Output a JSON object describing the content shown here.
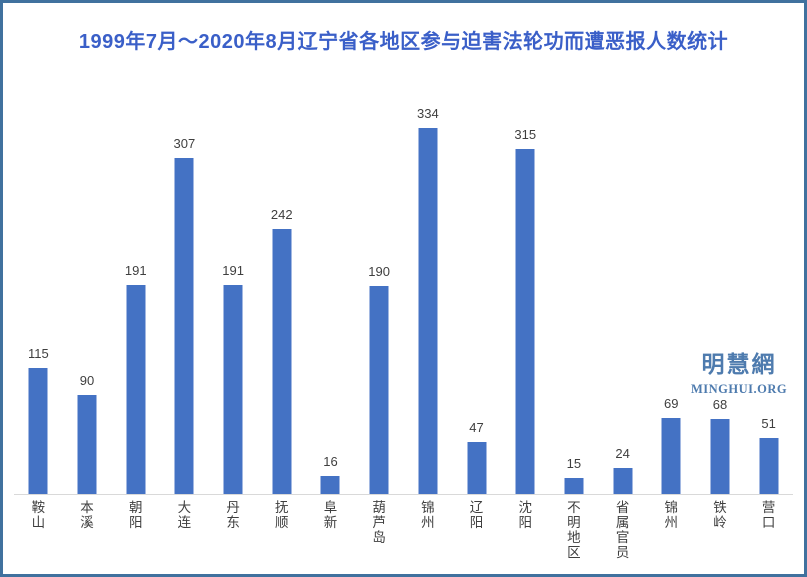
{
  "watermark": {
    "line1": "明慧網",
    "line2": "MINGHUI.ORG"
  },
  "colors": {
    "page_border": "#40719E",
    "title_text": "#3A5FC8",
    "bar_fill": "#4472C4",
    "value_label": "#3f3f3f",
    "category_label": "#3f3f3f",
    "axis_line": "#d9d9d9",
    "watermark_text": "#4E7BAE",
    "background": "#ffffff"
  },
  "chart_data": {
    "type": "bar",
    "title": "1999年7月～2020年8月辽宁省各地区参与迫害法轮功而遭恶报人数统计",
    "categories": [
      "鞍山",
      "本溪",
      "朝阳",
      "大连",
      "丹东",
      "抚顺",
      "阜新",
      "葫芦岛",
      "锦州",
      "辽阳",
      "沈阳",
      "不明地区",
      "省属官员",
      "锦州",
      "铁岭",
      "营口"
    ],
    "values": [
      115,
      90,
      191,
      307,
      191,
      242,
      16,
      190,
      334,
      47,
      315,
      15,
      24,
      69,
      68,
      51
    ],
    "xlabel": "",
    "ylabel": "",
    "ylim": [
      0,
      350
    ],
    "grid": false,
    "legend": false,
    "data_labels": true,
    "category_label_orientation": "vertical-stacked"
  }
}
